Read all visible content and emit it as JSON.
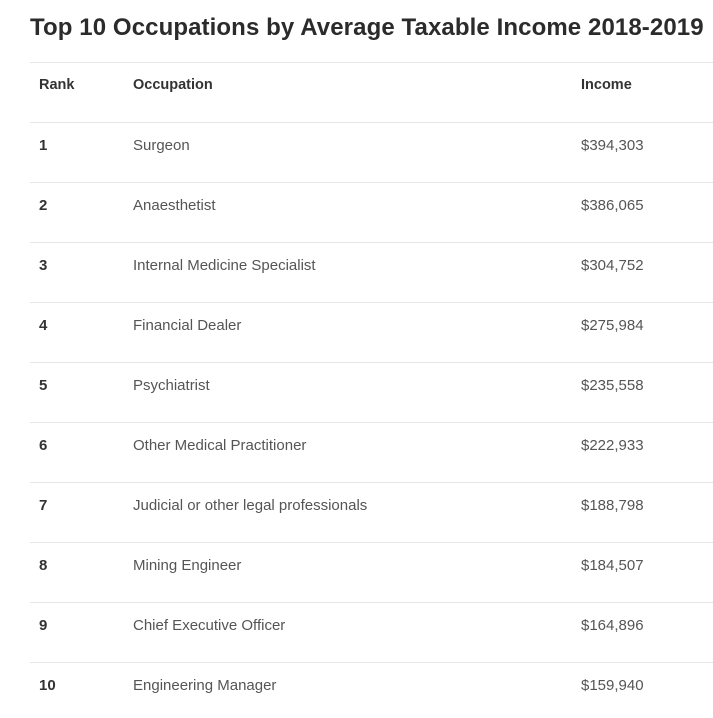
{
  "title": "Top 10 Occupations by Average Taxable Income 2018-2019",
  "columns": {
    "rank": "Rank",
    "occupation": "Occupation",
    "income": "Income"
  },
  "rows": [
    {
      "rank": "1",
      "occupation": "Surgeon",
      "income": "$394,303"
    },
    {
      "rank": "2",
      "occupation": "Anaesthetist",
      "income": "$386,065"
    },
    {
      "rank": "3",
      "occupation": "Internal Medicine Specialist",
      "income": "$304,752"
    },
    {
      "rank": "4",
      "occupation": "Financial Dealer",
      "income": "$275,984"
    },
    {
      "rank": "5",
      "occupation": "Psychiatrist",
      "income": "$235,558"
    },
    {
      "rank": "6",
      "occupation": "Other Medical Practitioner",
      "income": "$222,933"
    },
    {
      "rank": "7",
      "occupation": "Judicial or other legal professionals",
      "income": "$188,798"
    },
    {
      "rank": "8",
      "occupation": "Mining Engineer",
      "income": "$184,507"
    },
    {
      "rank": "9",
      "occupation": "Chief Executive Officer",
      "income": "$164,896"
    },
    {
      "rank": "10",
      "occupation": "Engineering Manager",
      "income": "$159,940"
    }
  ]
}
